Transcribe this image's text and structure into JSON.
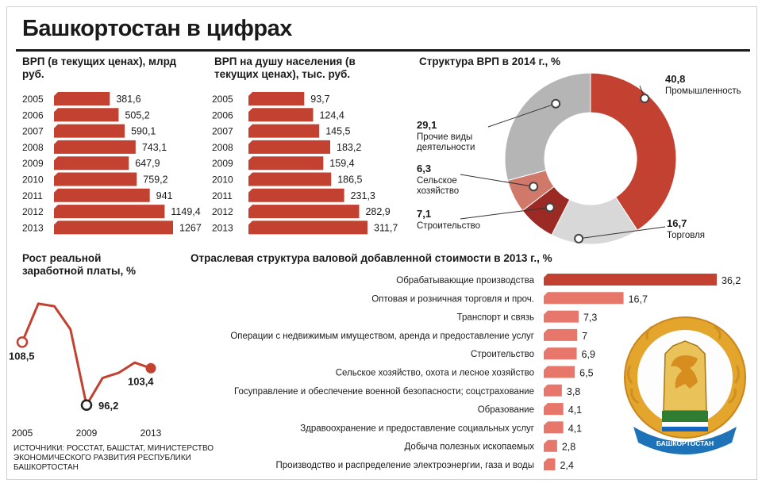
{
  "page": {
    "title": "Башкортостан в цифрах",
    "source": "ИСТОЧНИКИ: РОССТАТ, БАШСТАТ, МИНИСТЕРСТВО ЭКОНОМИЧЕСКОГО РАЗВИТИЯ РЕСПУБЛИКИ БАШКОРТОСТАН",
    "emblem_text": "БАШКОРТОСТАН"
  },
  "colors": {
    "bar": "#c24131",
    "bar_light": "#e7776a",
    "line": "#c24131",
    "donut_grey": "#b5b5b5",
    "donut_light": "#d8d8d8"
  },
  "chart_data": [
    {
      "type": "bar",
      "title": "ВРП (в текущих ценах), млрд руб.",
      "categories": [
        "2005",
        "2006",
        "2007",
        "2008",
        "2009",
        "2010",
        "2011",
        "2012",
        "2013"
      ],
      "values": [
        381.6,
        505.2,
        590.1,
        743.1,
        647.9,
        759.2,
        941,
        1149.4,
        1267
      ],
      "value_labels": [
        "381,6",
        "505,2",
        "590,1",
        "743,1",
        "647,9",
        "759,2",
        "941",
        "1149,4",
        "1267"
      ]
    },
    {
      "type": "bar",
      "title": "ВРП на душу населения (в текущих ценах), тыс. руб.",
      "categories": [
        "2005",
        "2006",
        "2007",
        "2008",
        "2009",
        "2010",
        "2011",
        "2012",
        "2013"
      ],
      "values": [
        93.7,
        124.4,
        145.5,
        183.2,
        159.4,
        186.5,
        231.3,
        282.9,
        311.7
      ],
      "value_labels": [
        "93,7",
        "124,4",
        "145,5",
        "183,2",
        "159,4",
        "186,5",
        "231,3",
        "282,9",
        "311,7"
      ]
    },
    {
      "type": "pie",
      "title": "Структура ВРП в 2014 г., %",
      "labels": [
        "Промышленность",
        "Торговля",
        "Строительство",
        "Сельское хозяйство",
        "Прочие виды деятельности"
      ],
      "values": [
        40.8,
        16.7,
        7.1,
        6.3,
        29.1
      ],
      "value_labels": [
        "40,8",
        "16,7",
        "7,1",
        "6,3",
        "29,1"
      ]
    },
    {
      "type": "line",
      "title": "Рост реальной заработной платы, %",
      "x": [
        2005,
        2006,
        2007,
        2008,
        2009,
        2010,
        2011,
        2012,
        2013
      ],
      "y": [
        108.5,
        116.0,
        115.5,
        111.0,
        96.2,
        101.5,
        102.5,
        104.5,
        103.4
      ],
      "tick_labels": [
        "2005",
        "2009",
        "2013"
      ],
      "point_labels": [
        {
          "x": 2005,
          "text": "108,5"
        },
        {
          "x": 2009,
          "text": "96,2"
        },
        {
          "x": 2013,
          "text": "103,4"
        }
      ]
    },
    {
      "type": "bar",
      "title": "Отраслевая структура валовой добавленной стоимости в 2013 г., %",
      "categories": [
        "Обрабатывающие производства",
        "Оптовая и розничная торговля и проч.",
        "Транспорт и связь",
        "Операции с недвижимым имуществом, аренда и предоставление услуг",
        "Строительство",
        "Сельское хозяйство, охота и лесное хозяйство",
        "Госуправление и обеспечение военной безопасности; соцстрахование",
        "Образование",
        "Здравоохранение и предоставление социальных услуг",
        "Добыча полезных ископаемых",
        "Производство и распределение электроэнергии, газа и воды"
      ],
      "values": [
        36.2,
        16.7,
        7.3,
        7,
        6.9,
        6.5,
        3.8,
        4.1,
        4.1,
        2.8,
        2.4
      ],
      "value_labels": [
        "36,2",
        "16,7",
        "7,3",
        "7",
        "6,9",
        "6,5",
        "3,8",
        "4,1",
        "4,1",
        "2,8",
        "2,4"
      ]
    }
  ]
}
